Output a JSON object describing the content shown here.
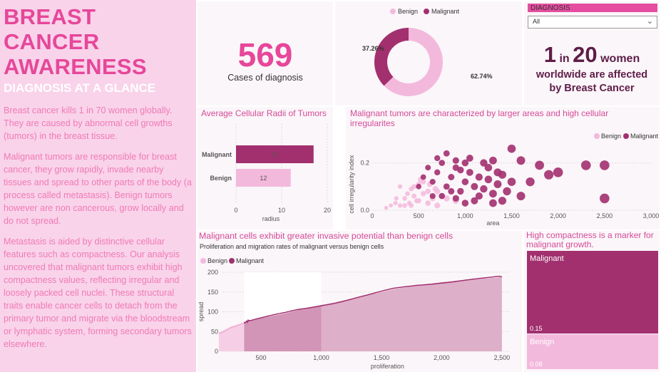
{
  "left": {
    "title": "BREAST CANCER AWARENESS",
    "subtitle": "DIAGNOSIS AT A GLANCE",
    "paragraphs": [
      "Breast cancer kills 1 in 70 women globally. They are caused by abnormal cell growths (tumors) in the breast tissue.",
      "Malignant tumors are responsible for breast cancer, they grow rapidly, invade nearby tissues and spread to other parts of the body (a process called metastasis). Benign tumors however are non cancerous, grow locally and do not spread.",
      "Metastasis is aided by distinctive cellular features such as compactness. Our analysis uncovered that malignant tumors exhibit high compactness values, reflecting irregular and loosely packed cell nuclei. These structural traits enable cancer cells to detach from the primary tumor and migrate via the bloodstream or lymphatic system, forming secondary tumors elsewhere."
    ]
  },
  "kpi": {
    "value": "569",
    "label": "Cases of diagnosis"
  },
  "slicer": {
    "label": "DIAGNOSIS",
    "value": "All"
  },
  "stat": {
    "one": "1",
    "in": "in",
    "twenty": "20",
    "women": "women",
    "line2": "worldwide are affected",
    "line3": "by Breast Cancer"
  },
  "colors": {
    "benign": "#f3b9dc",
    "malignant": "#a2306f",
    "title": "#d54a98"
  },
  "legend": {
    "benign": "Benign",
    "malignant": "Malignant"
  },
  "donut": {
    "chart_data": {
      "type": "pie",
      "series": [
        {
          "name": "Benign",
          "value": 62.74,
          "label": "62.74%"
        },
        {
          "name": "Malignant",
          "value": 37.26,
          "label": "37.26%"
        }
      ]
    }
  },
  "bar": {
    "title": "Average Cellular Radii of Tumors",
    "chart_data": {
      "type": "bar",
      "categories": [
        "Malignant",
        "Benign"
      ],
      "values": [
        17,
        12
      ],
      "xlabel": "radius",
      "xticks": [
        "0",
        "10",
        "20"
      ],
      "xlim": [
        0,
        20
      ]
    }
  },
  "scatter": {
    "title": "Malignant tumors are characterized by larger areas and high cellular irregularites",
    "chart_data": {
      "type": "scatter",
      "xlabel": "area",
      "ylabel": "cell irregularity index",
      "xticks": [
        "0",
        "500",
        "1,000",
        "1,500",
        "2,000",
        "2,500",
        "3,000"
      ],
      "yticks": [
        "0.0",
        "0.2"
      ],
      "xlim": [
        0,
        3000
      ],
      "ylim": [
        0,
        0.28
      ],
      "series": [
        {
          "name": "Benign",
          "points": [
            [
              150,
              0.01
            ],
            [
              200,
              0.02
            ],
            [
              250,
              0.03
            ],
            [
              300,
              0.02
            ],
            [
              350,
              0.05
            ],
            [
              400,
              0.03
            ],
            [
              450,
              0.06
            ],
            [
              500,
              0.04
            ],
            [
              550,
              0.07
            ],
            [
              600,
              0.03
            ],
            [
              650,
              0.05
            ],
            [
              700,
              0.02
            ],
            [
              750,
              0.06
            ],
            [
              300,
              0.1
            ],
            [
              420,
              0.09
            ],
            [
              500,
              0.11
            ],
            [
              380,
              0.07
            ],
            [
              600,
              0.08
            ],
            [
              550,
              0.12
            ],
            [
              480,
              0.04
            ],
            [
              420,
              0.02
            ],
            [
              700,
              0.08
            ],
            [
              800,
              0.05
            ],
            [
              900,
              0.04
            ],
            [
              350,
              0.02
            ],
            [
              260,
              0.05
            ],
            [
              450,
              0.1
            ],
            [
              520,
              0.13
            ],
            [
              620,
              0.11
            ],
            [
              680,
              0.09
            ]
          ]
        },
        {
          "name": "Malignant",
          "points": [
            [
              500,
              0.1
            ],
            [
              550,
              0.14
            ],
            [
              600,
              0.18
            ],
            [
              650,
              0.12
            ],
            [
              700,
              0.16
            ],
            [
              750,
              0.2
            ],
            [
              800,
              0.1
            ],
            [
              850,
              0.14
            ],
            [
              900,
              0.18
            ],
            [
              950,
              0.08
            ],
            [
              1000,
              0.12
            ],
            [
              1050,
              0.16
            ],
            [
              1100,
              0.1
            ],
            [
              1150,
              0.14
            ],
            [
              1200,
              0.09
            ],
            [
              1250,
              0.13
            ],
            [
              1300,
              0.07
            ],
            [
              1350,
              0.11
            ],
            [
              1400,
              0.15
            ],
            [
              1450,
              0.08
            ],
            [
              1500,
              0.12
            ],
            [
              700,
              0.22
            ],
            [
              800,
              0.24
            ],
            [
              900,
              0.21
            ],
            [
              1000,
              0.2
            ],
            [
              1200,
              0.2
            ],
            [
              1300,
              0.21
            ],
            [
              1500,
              0.26
            ],
            [
              1600,
              0.21
            ],
            [
              1800,
              0.19
            ],
            [
              2000,
              0.16
            ],
            [
              2300,
              0.19
            ],
            [
              2500,
              0.19
            ],
            [
              2500,
              0.05
            ],
            [
              1700,
              0.12
            ],
            [
              1900,
              0.15
            ],
            [
              1100,
              0.04
            ],
            [
              900,
              0.05
            ],
            [
              1300,
              0.03
            ],
            [
              1600,
              0.06
            ],
            [
              750,
              0.06
            ],
            [
              1400,
              0.04
            ],
            [
              1000,
              0.03
            ],
            [
              1150,
              0.06
            ],
            [
              850,
              0.08
            ],
            [
              650,
              0.06
            ],
            [
              1250,
              0.18
            ],
            [
              1050,
              0.22
            ],
            [
              950,
              0.17
            ],
            [
              1350,
              0.16
            ]
          ]
        }
      ]
    }
  },
  "area": {
    "title": "Malignant cells exhibit greater invasive potential than benign cells",
    "subtitle": "Proliferation and migration rates of malignant versus benign cells",
    "chart_data": {
      "type": "area",
      "xlabel": "proliferation",
      "ylabel": "spread",
      "xticks": [
        "500",
        "1,000",
        "1,500",
        "2,000",
        "2,500"
      ],
      "yticks": [
        "0",
        "50",
        "100",
        "150",
        "200"
      ],
      "xlim": [
        180,
        2560
      ],
      "ylim": [
        0,
        200
      ],
      "series": [
        {
          "name": "Benign",
          "x": [
            150,
            360
          ],
          "points": [
            [
              150,
              45
            ],
            [
              200,
              52
            ],
            [
              250,
              60
            ],
            [
              300,
              65
            ],
            [
              360,
              72
            ]
          ]
        },
        {
          "name": "Malignant",
          "points": [
            [
              360,
              72
            ],
            [
              400,
              78
            ],
            [
              500,
              84
            ],
            [
              600,
              90
            ],
            [
              700,
              96
            ],
            [
              800,
              104
            ],
            [
              900,
              110
            ],
            [
              1000,
              117
            ],
            [
              1100,
              123
            ],
            [
              1200,
              130
            ],
            [
              1300,
              137
            ],
            [
              1400,
              143
            ],
            [
              1500,
              150
            ],
            [
              1600,
              157
            ],
            [
              1700,
              162
            ],
            [
              1800,
              167
            ],
            [
              1900,
              171
            ],
            [
              2000,
              175
            ],
            [
              2100,
              178
            ],
            [
              2200,
              181
            ],
            [
              2300,
              183
            ],
            [
              2400,
              185
            ],
            [
              2500,
              188
            ]
          ]
        }
      ]
    }
  },
  "treemap": {
    "title": "High compactness is a marker for malignant growth.",
    "chart_data": {
      "type": "bar",
      "categories": [
        "Malignant",
        "Benign"
      ],
      "values": [
        0.15,
        0.08
      ],
      "labels": [
        "0.15",
        "0.08"
      ]
    }
  }
}
